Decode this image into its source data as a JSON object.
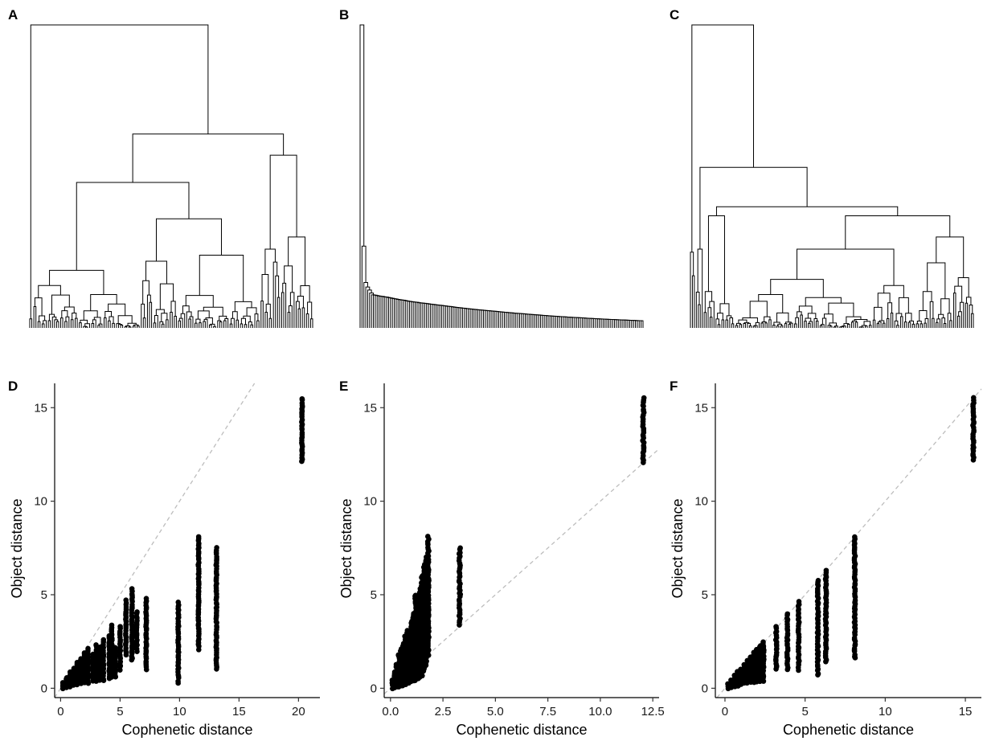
{
  "panels": {
    "A": "A",
    "B": "B",
    "C": "C",
    "D": "D",
    "E": "E",
    "F": "F"
  },
  "chart_data": [
    {
      "panel": "A",
      "type": "dendrogram",
      "title": "",
      "shape": "balanced",
      "leaves": 150
    },
    {
      "panel": "B",
      "type": "dendrogram",
      "title": "",
      "shape": "chained",
      "leaves": 150
    },
    {
      "panel": "C",
      "type": "dendrogram",
      "title": "",
      "shape": "balanced",
      "leaves": 150
    },
    {
      "panel": "D",
      "type": "scatter",
      "xlabel": "Cophenetic distance",
      "ylabel": "Object distance",
      "xlim": [
        -0.5,
        21.8
      ],
      "ylim": [
        -0.5,
        16.3
      ],
      "xticks": [
        0,
        5,
        10,
        15,
        20
      ],
      "xtick_labels": [
        "0",
        "5",
        "10",
        "15",
        "20"
      ],
      "yticks": [
        0,
        5,
        10,
        15
      ],
      "ytick_labels": [
        "0",
        "5",
        "10",
        "15"
      ],
      "reference_line": "y = x",
      "columns": [
        {
          "x": 0.2,
          "y_min": 0.0,
          "y_max": 0.3
        },
        {
          "x": 0.5,
          "y_min": 0.05,
          "y_max": 0.6
        },
        {
          "x": 0.8,
          "y_min": 0.1,
          "y_max": 0.9
        },
        {
          "x": 1.1,
          "y_min": 0.15,
          "y_max": 1.1
        },
        {
          "x": 1.4,
          "y_min": 0.2,
          "y_max": 1.4
        },
        {
          "x": 1.7,
          "y_min": 0.25,
          "y_max": 1.6
        },
        {
          "x": 2.0,
          "y_min": 0.3,
          "y_max": 1.9
        },
        {
          "x": 2.3,
          "y_min": 0.3,
          "y_max": 2.1
        },
        {
          "x": 2.7,
          "y_min": 0.35,
          "y_max": 1.8
        },
        {
          "x": 3.0,
          "y_min": 0.35,
          "y_max": 2.3
        },
        {
          "x": 3.3,
          "y_min": 0.4,
          "y_max": 2.2
        },
        {
          "x": 3.6,
          "y_min": 0.4,
          "y_max": 2.6
        },
        {
          "x": 4.1,
          "y_min": 0.5,
          "y_max": 2.8
        },
        {
          "x": 4.3,
          "y_min": 0.6,
          "y_max": 3.4
        },
        {
          "x": 4.6,
          "y_min": 0.6,
          "y_max": 2.2
        },
        {
          "x": 5.0,
          "y_min": 1.0,
          "y_max": 3.3
        },
        {
          "x": 5.5,
          "y_min": 1.8,
          "y_max": 4.7
        },
        {
          "x": 6.0,
          "y_min": 1.5,
          "y_max": 5.3
        },
        {
          "x": 6.4,
          "y_min": 2.0,
          "y_max": 4.1
        },
        {
          "x": 7.2,
          "y_min": 1.0,
          "y_max": 4.8
        },
        {
          "x": 9.9,
          "y_min": 0.3,
          "y_max": 4.6
        },
        {
          "x": 11.6,
          "y_min": 2.1,
          "y_max": 8.1
        },
        {
          "x": 13.1,
          "y_min": 1.0,
          "y_max": 7.5
        },
        {
          "x": 20.3,
          "y_min": 12.1,
          "y_max": 15.5
        }
      ]
    },
    {
      "panel": "E",
      "type": "scatter",
      "xlabel": "Cophenetic distance",
      "ylabel": "Object distance",
      "xlim": [
        -0.3,
        12.8
      ],
      "ylim": [
        -0.5,
        16.3
      ],
      "xticks": [
        0,
        2.5,
        5,
        7.5,
        10,
        12.5
      ],
      "xtick_labels": [
        "0.0",
        "2.5",
        "5.0",
        "7.5",
        "10.0",
        "12.5"
      ],
      "yticks": [
        0,
        5,
        10,
        15
      ],
      "ytick_labels": [
        "0",
        "5",
        "10",
        "15"
      ],
      "reference_line": "y = x",
      "columns": [
        {
          "x": 0.1,
          "y_min": 0.0,
          "y_max": 0.4
        },
        {
          "x": 0.2,
          "y_min": 0.0,
          "y_max": 0.9
        },
        {
          "x": 0.3,
          "y_min": 0.05,
          "y_max": 1.3
        },
        {
          "x": 0.4,
          "y_min": 0.1,
          "y_max": 1.8
        },
        {
          "x": 0.5,
          "y_min": 0.1,
          "y_max": 2.1
        },
        {
          "x": 0.6,
          "y_min": 0.15,
          "y_max": 2.4
        },
        {
          "x": 0.7,
          "y_min": 0.2,
          "y_max": 2.8
        },
        {
          "x": 0.8,
          "y_min": 0.25,
          "y_max": 3.1
        },
        {
          "x": 0.9,
          "y_min": 0.3,
          "y_max": 3.0
        },
        {
          "x": 1.0,
          "y_min": 0.35,
          "y_max": 3.6
        },
        {
          "x": 1.1,
          "y_min": 0.4,
          "y_max": 4.0
        },
        {
          "x": 1.2,
          "y_min": 0.45,
          "y_max": 5.0
        },
        {
          "x": 1.3,
          "y_min": 0.5,
          "y_max": 4.6
        },
        {
          "x": 1.4,
          "y_min": 0.6,
          "y_max": 5.3
        },
        {
          "x": 1.5,
          "y_min": 0.7,
          "y_max": 6.0
        },
        {
          "x": 1.6,
          "y_min": 0.9,
          "y_max": 6.6
        },
        {
          "x": 1.7,
          "y_min": 1.2,
          "y_max": 7.0
        },
        {
          "x": 1.8,
          "y_min": 1.8,
          "y_max": 8.1
        },
        {
          "x": 3.3,
          "y_min": 3.4,
          "y_max": 7.5
        },
        {
          "x": 12.05,
          "y_min": 12.1,
          "y_max": 15.5
        }
      ]
    },
    {
      "panel": "F",
      "type": "scatter",
      "xlabel": "Cophenetic distance",
      "ylabel": "Object distance",
      "xlim": [
        -0.6,
        16.0
      ],
      "ylim": [
        -0.5,
        16.3
      ],
      "xticks": [
        0,
        5,
        10,
        15
      ],
      "xtick_labels": [
        "0",
        "5",
        "10",
        "15"
      ],
      "yticks": [
        0,
        5,
        10,
        15
      ],
      "ytick_labels": [
        "0",
        "5",
        "10",
        "15"
      ],
      "reference_line": "y = x",
      "columns": [
        {
          "x": 0.2,
          "y_min": 0.0,
          "y_max": 0.25
        },
        {
          "x": 0.4,
          "y_min": 0.05,
          "y_max": 0.45
        },
        {
          "x": 0.6,
          "y_min": 0.1,
          "y_max": 0.65
        },
        {
          "x": 0.8,
          "y_min": 0.15,
          "y_max": 0.85
        },
        {
          "x": 1.0,
          "y_min": 0.2,
          "y_max": 1.05
        },
        {
          "x": 1.2,
          "y_min": 0.25,
          "y_max": 1.25
        },
        {
          "x": 1.4,
          "y_min": 0.3,
          "y_max": 1.45
        },
        {
          "x": 1.6,
          "y_min": 0.3,
          "y_max": 1.7
        },
        {
          "x": 1.8,
          "y_min": 0.35,
          "y_max": 1.9
        },
        {
          "x": 2.0,
          "y_min": 0.35,
          "y_max": 2.1
        },
        {
          "x": 2.2,
          "y_min": 0.4,
          "y_max": 2.3
        },
        {
          "x": 2.4,
          "y_min": 0.4,
          "y_max": 2.5
        },
        {
          "x": 3.2,
          "y_min": 1.0,
          "y_max": 3.3
        },
        {
          "x": 3.9,
          "y_min": 1.0,
          "y_max": 4.0
        },
        {
          "x": 4.6,
          "y_min": 1.0,
          "y_max": 4.6
        },
        {
          "x": 5.8,
          "y_min": 0.7,
          "y_max": 5.8
        },
        {
          "x": 6.3,
          "y_min": 1.4,
          "y_max": 6.3
        },
        {
          "x": 8.1,
          "y_min": 1.6,
          "y_max": 8.1
        },
        {
          "x": 15.5,
          "y_min": 12.2,
          "y_max": 15.5
        }
      ]
    }
  ]
}
